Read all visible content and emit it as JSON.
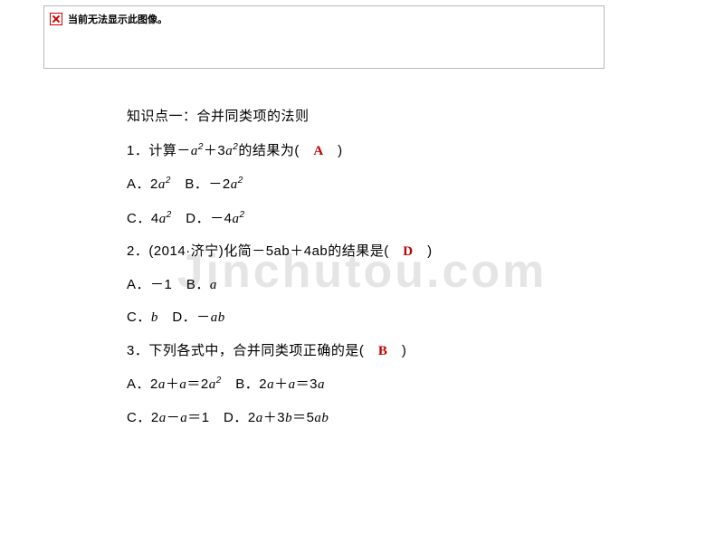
{
  "broken_image": {
    "alt_text": "当前无法显示此图像。",
    "border_color": "#b8b8b8",
    "icon_color": "#c00"
  },
  "watermark": {
    "text": "Jinchutou.com",
    "color": "rgba(180,180,180,0.35)",
    "fontsize": 52
  },
  "text_color": "#000000",
  "answer_color": "#c00000",
  "base_fontsize": 15,
  "line_spacing": 14,
  "content": {
    "heading": "知识点一：合并同类项的法则",
    "q1": {
      "prefix": "1．计算－",
      "term1_base": "a",
      "term1_sup": "2",
      "mid1": "＋3",
      "term2_base": "a",
      "term2_sup": "2",
      "suffix": "的结果为(　",
      "answer": "A",
      "close": "　)",
      "optA_pre": "A．2",
      "optA_base": "a",
      "optA_sup": "2",
      "optB_pre": "　B．－2",
      "optB_base": "a",
      "optB_sup": "2",
      "optC_pre": "C．4",
      "optC_base": "a",
      "optC_sup": "2",
      "optD_pre": "　D．－4",
      "optD_base": "a",
      "optD_sup": "2"
    },
    "q2": {
      "text": "2．(2014·济宁)化简－5ab＋4ab的结果是(　",
      "answer": "D",
      "close": "　)",
      "lineA": "A．－1　B．",
      "lineA_ital": "a",
      "lineC_pre": "C．",
      "lineC_ital": "b",
      "lineC_mid": "　D．－",
      "lineC_ital2": "ab"
    },
    "q3": {
      "text": "3．下列各式中，合并同类项正确的是(　",
      "answer": "B",
      "close": "　)",
      "A_pre": "A．2",
      "A_i1": "a",
      "A_m1": "＋",
      "A_i2": "a",
      "A_m2": "＝2",
      "A_i3": "a",
      "A_sup": "2",
      "B_pre": "　B．2",
      "B_i1": "a",
      "B_m1": "＋",
      "B_i2": "a",
      "B_m2": "＝3",
      "B_i3": "a",
      "C_pre": "C．2",
      "C_i1": "a",
      "C_m1": "－",
      "C_i2": "a",
      "C_m2": "＝1",
      "D_pre": "　D．2",
      "D_i1": "a",
      "D_m1": "＋3",
      "D_i2": "b",
      "D_m2": "＝5",
      "D_i3": "ab"
    }
  }
}
